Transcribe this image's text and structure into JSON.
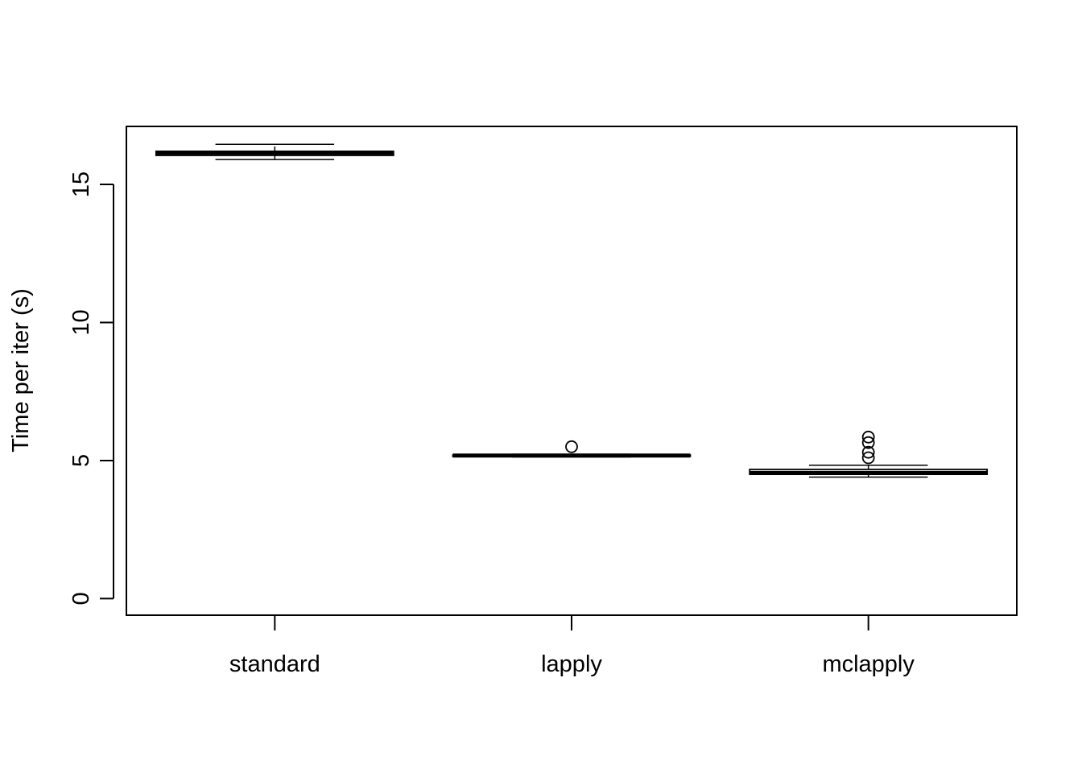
{
  "chart_data": {
    "type": "boxplot",
    "title": "",
    "xlabel": "",
    "ylabel": "Time per iter (s)",
    "ylim": [
      -0.6,
      17.1
    ],
    "y_ticks": [
      0,
      5,
      10,
      15
    ],
    "categories": [
      "standard",
      "lapply",
      "mclapply"
    ],
    "boxes": [
      {
        "category": "standard",
        "whisker_low": 15.9,
        "q1": 16.05,
        "median": 16.15,
        "q3": 16.2,
        "whisker_high": 16.45,
        "outliers": []
      },
      {
        "category": "lapply",
        "whisker_low": 5.13,
        "q1": 5.15,
        "median": 5.18,
        "q3": 5.2,
        "whisker_high": 5.23,
        "outliers": [
          5.5
        ]
      },
      {
        "category": "mclapply",
        "whisker_low": 4.4,
        "q1": 4.5,
        "median": 4.55,
        "q3": 4.68,
        "whisker_high": 4.83,
        "outliers": [
          5.1,
          5.3,
          5.65,
          5.85
        ]
      }
    ],
    "grid": false,
    "legend": "none"
  }
}
